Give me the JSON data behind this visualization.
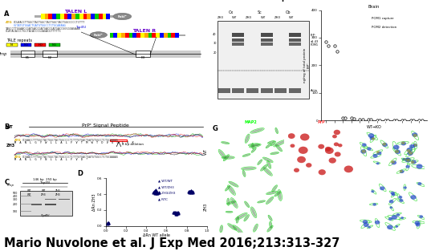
{
  "title_text": "Mario Nuvolone et al. J Exp Med 2016;213:313-327",
  "title_fontsize": 10.5,
  "bg_color": "#ffffff",
  "panel_D": {
    "xlabel": "ΔRn WT allele",
    "ylabel": "ΔRn ZH3",
    "xlim": [
      0.0,
      1.0
    ],
    "ylim": [
      0.0,
      0.6
    ],
    "xticks": [
      0.0,
      0.2,
      0.4,
      0.6,
      0.8,
      1.0
    ],
    "yticks": [
      0.0,
      0.2,
      0.4,
      0.6
    ]
  },
  "panel_F": {
    "title": "Brain",
    "ylim": [
      0,
      400
    ],
    "yticks": [
      0,
      100,
      200,
      300,
      400
    ],
    "xlabel": "WT→KO",
    "pom1_y": [
      285,
      270,
      10,
      8,
      5,
      3,
      2,
      1.5,
      1,
      0.5,
      0.3,
      0.2
    ],
    "pom2_y": [
      270,
      250,
      8,
      6,
      4,
      2.5,
      1.5,
      1,
      0.5,
      0.2,
      0.1,
      0.1
    ]
  }
}
